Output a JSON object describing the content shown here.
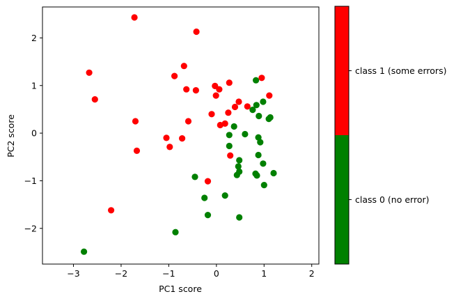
{
  "chart_data": {
    "type": "scatter",
    "title": "",
    "xlabel": "PC1 score",
    "ylabel": "PC2 score",
    "xlim": [
      -3.65,
      2.15
    ],
    "ylim": [
      -2.75,
      2.65
    ],
    "x_ticks": [
      -3,
      -2,
      -1,
      0,
      1,
      2
    ],
    "y_ticks": [
      -2,
      -1,
      0,
      1,
      2
    ],
    "x_tick_labels": [
      "−3",
      "−2",
      "−1",
      "0",
      "1",
      "2"
    ],
    "y_tick_labels": [
      "−2",
      "−1",
      "0",
      "1",
      "2"
    ],
    "grid": false,
    "legend": "none",
    "colorbar": {
      "position": "right",
      "entries": [
        {
          "label": "class 1 (some errors)",
          "color": "#ff0000"
        },
        {
          "label": "class 0 (no error)",
          "color": "#008000"
        }
      ]
    },
    "series": [
      {
        "color": "#ff0000",
        "points": [
          [
            -1.72,
            2.43
          ],
          [
            -0.42,
            2.13
          ],
          [
            -2.67,
            1.27
          ],
          [
            -0.68,
            1.41
          ],
          [
            -0.88,
            1.2
          ],
          [
            -2.55,
            0.71
          ],
          [
            -0.63,
            0.92
          ],
          [
            -0.43,
            0.9
          ],
          [
            -0.03,
            0.99
          ],
          [
            0.06,
            0.92
          ],
          [
            0.27,
            1.06
          ],
          [
            0.95,
            1.16
          ],
          [
            1.11,
            0.79
          ],
          [
            -0.01,
            0.79
          ],
          [
            0.47,
            0.66
          ],
          [
            0.65,
            0.56
          ],
          [
            0.39,
            0.55
          ],
          [
            0.25,
            0.43
          ],
          [
            -0.1,
            0.4
          ],
          [
            -1.7,
            0.25
          ],
          [
            -0.59,
            0.25
          ],
          [
            0.18,
            0.2
          ],
          [
            0.08,
            0.17
          ],
          [
            -1.05,
            -0.1
          ],
          [
            -0.72,
            -0.11
          ],
          [
            -1.67,
            -0.37
          ],
          [
            -0.98,
            -0.29
          ],
          [
            0.29,
            -0.47
          ],
          [
            -0.18,
            -1.01
          ],
          [
            -2.21,
            -1.62
          ]
        ]
      },
      {
        "color": "#008000",
        "points": [
          [
            0.83,
            1.11
          ],
          [
            0.98,
            0.66
          ],
          [
            0.84,
            0.59
          ],
          [
            0.76,
            0.49
          ],
          [
            0.89,
            0.36
          ],
          [
            1.13,
            0.33
          ],
          [
            1.1,
            0.3
          ],
          [
            0.37,
            0.14
          ],
          [
            0.27,
            -0.04
          ],
          [
            0.6,
            -0.02
          ],
          [
            0.88,
            -0.09
          ],
          [
            0.92,
            -0.19
          ],
          [
            0.27,
            -0.27
          ],
          [
            0.88,
            -0.46
          ],
          [
            0.48,
            -0.57
          ],
          [
            0.98,
            -0.64
          ],
          [
            0.46,
            -0.7
          ],
          [
            0.48,
            -0.81
          ],
          [
            1.2,
            -0.84
          ],
          [
            0.82,
            -0.85
          ],
          [
            0.85,
            -0.89
          ],
          [
            0.43,
            -0.88
          ],
          [
            -0.45,
            -0.92
          ],
          [
            1.0,
            -1.09
          ],
          [
            0.18,
            -1.31
          ],
          [
            -0.25,
            -1.36
          ],
          [
            -0.18,
            -1.72
          ],
          [
            0.48,
            -1.77
          ],
          [
            -0.86,
            -2.08
          ],
          [
            -2.78,
            -2.49
          ]
        ]
      }
    ]
  }
}
